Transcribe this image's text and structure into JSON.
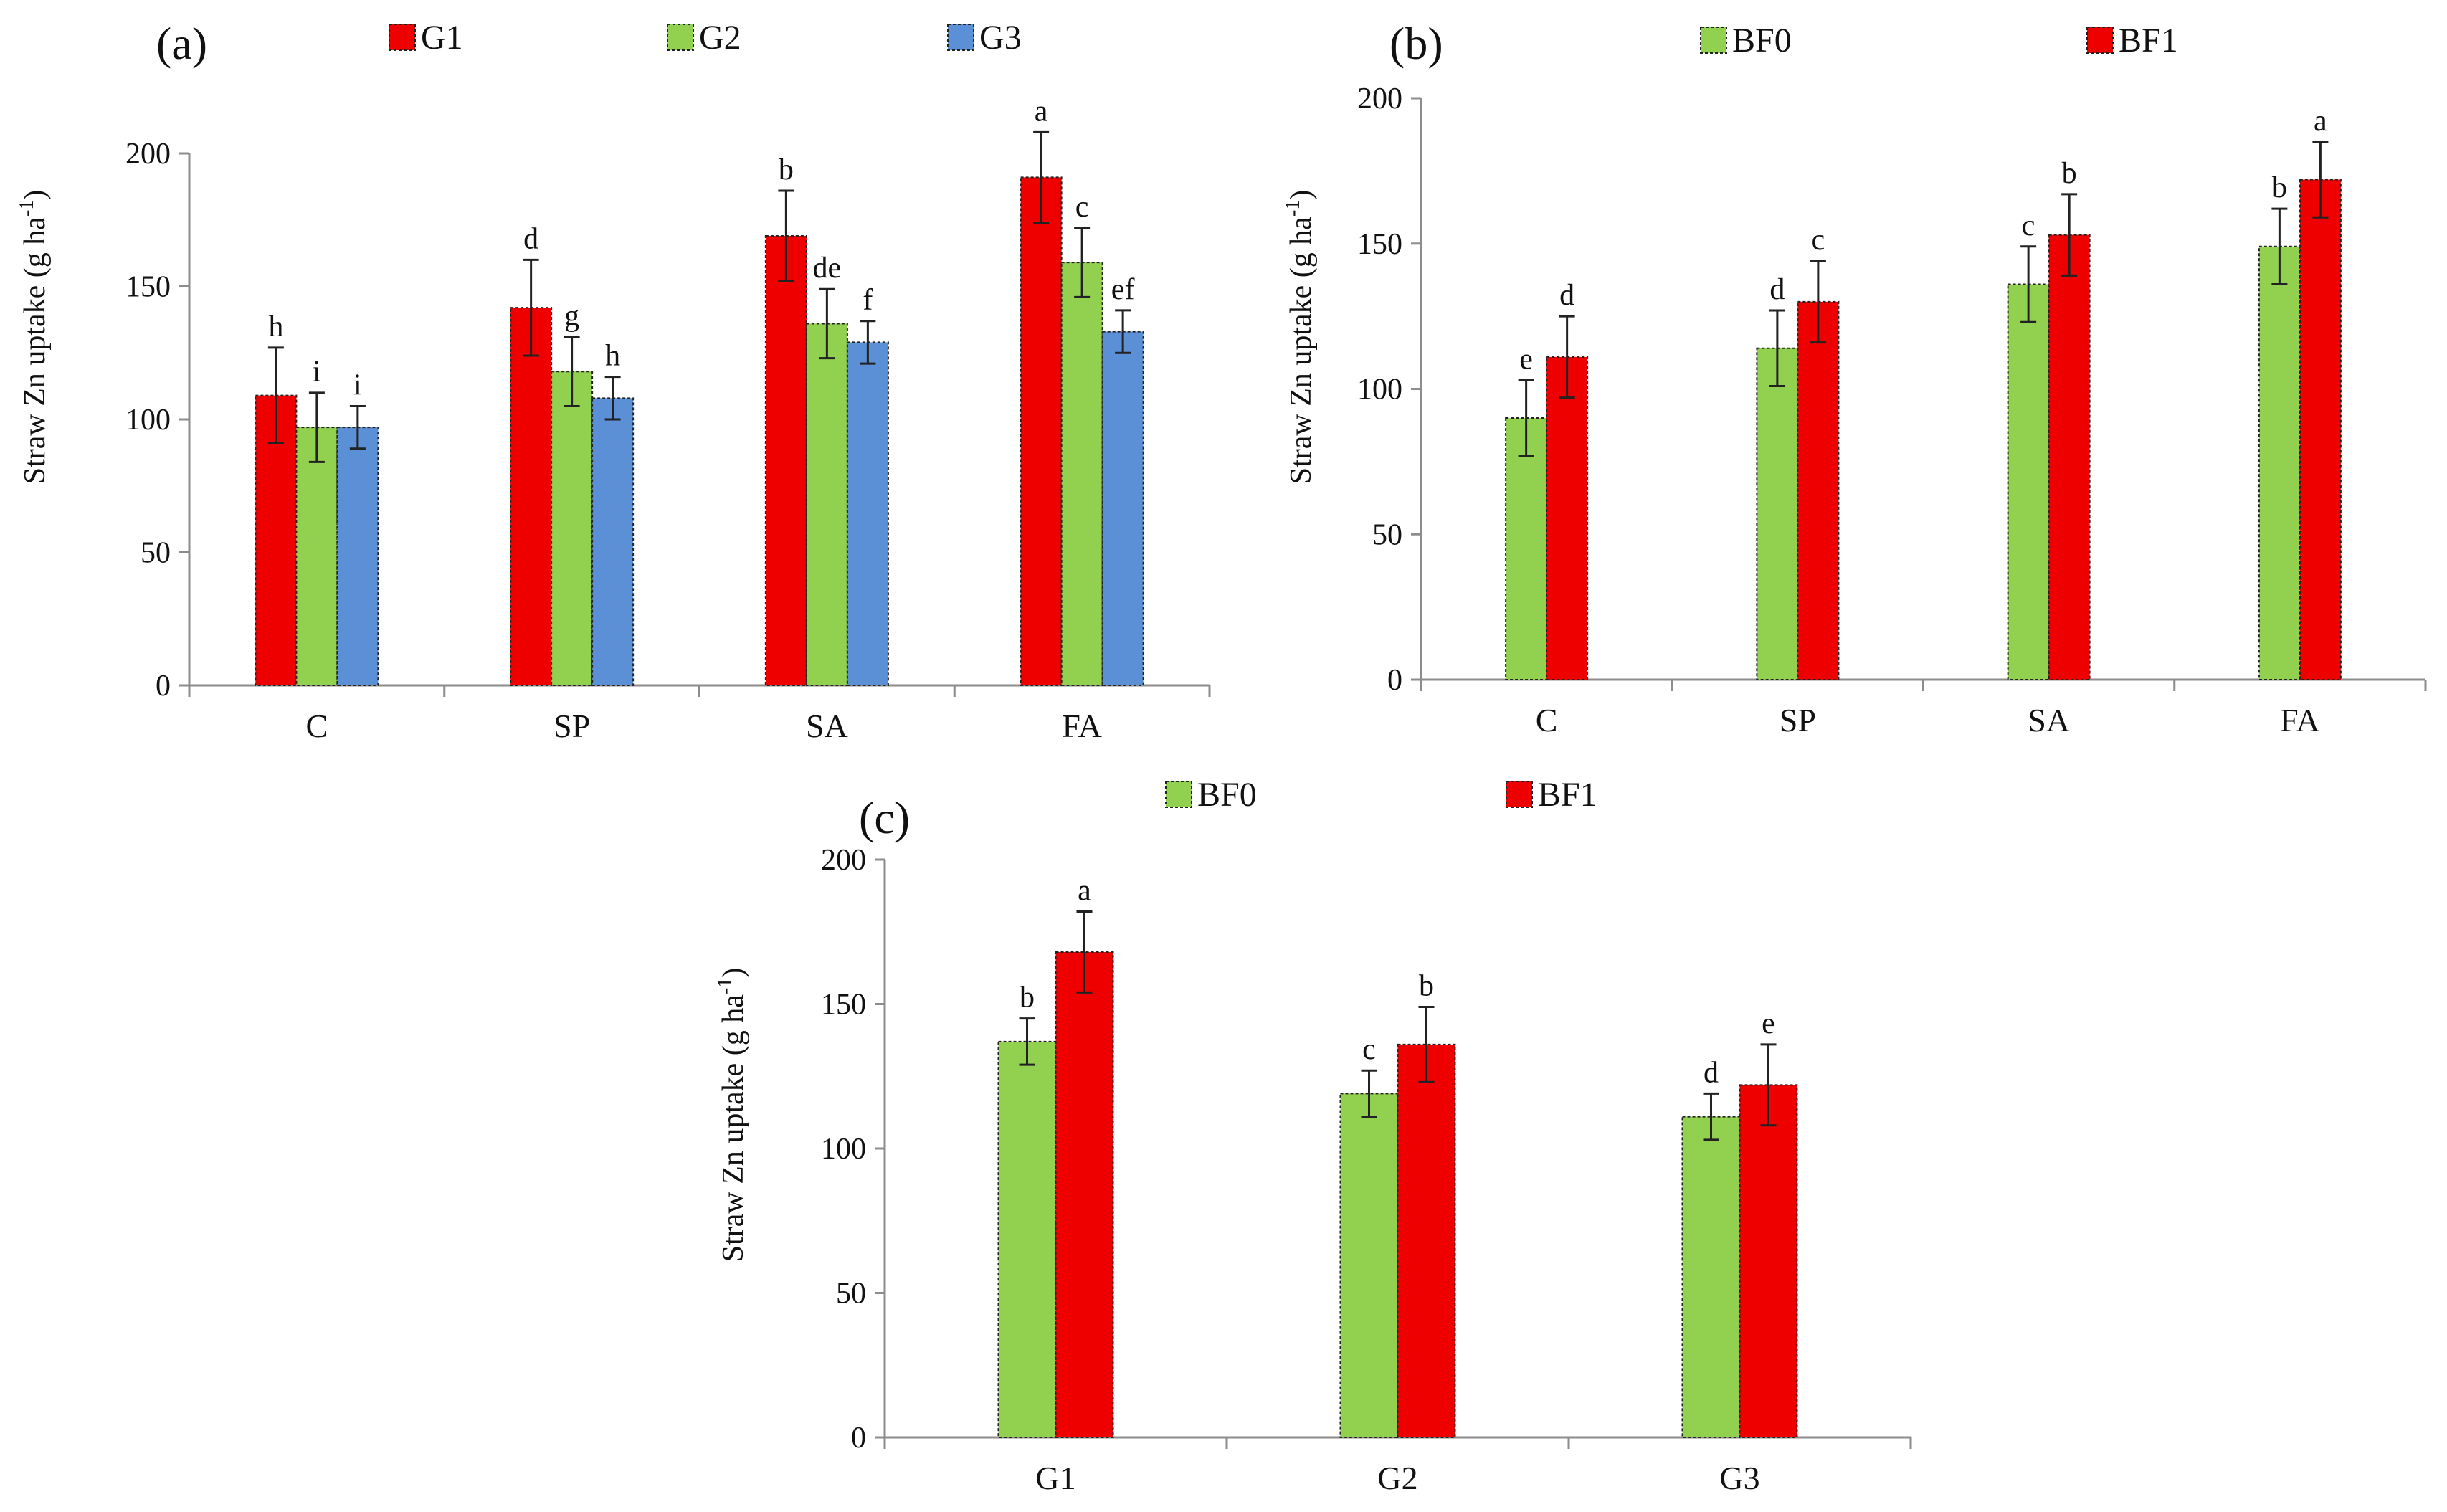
{
  "figure": {
    "colors": {
      "G1": "#ee0000",
      "G2": "#92d050",
      "G3": "#5b8fd6",
      "BF0": "#92d050",
      "BF1": "#ee0000"
    },
    "icons": {
      "legend-swatch": "filled-square"
    }
  },
  "chart_data": [
    {
      "id": "a",
      "panel_label": "(a)",
      "type": "bar",
      "ylabel": "Straw Zn uptake (g ha",
      "ylabel_sup": "-1",
      "ylabel_close": ")",
      "ylim": [
        0,
        200
      ],
      "yticks": [
        0,
        50,
        100,
        150,
        200
      ],
      "categories": [
        "C",
        "SP",
        "SA",
        "FA"
      ],
      "legend": [
        "G1",
        "G2",
        "G3"
      ],
      "series": [
        {
          "name": "G1",
          "color": "#ee0000",
          "values": [
            109,
            142,
            169,
            191
          ],
          "errors": [
            18,
            18,
            17,
            17
          ],
          "letters": [
            "h",
            "d",
            "b",
            "a"
          ]
        },
        {
          "name": "G2",
          "color": "#92d050",
          "values": [
            97,
            118,
            136,
            159
          ],
          "errors": [
            13,
            13,
            13,
            13
          ],
          "letters": [
            "i",
            "g",
            "de",
            "c"
          ]
        },
        {
          "name": "G3",
          "color": "#5b8fd6",
          "values": [
            97,
            108,
            129,
            133
          ],
          "errors": [
            8,
            8,
            8,
            8
          ],
          "letters": [
            "i",
            "h",
            "f",
            "ef"
          ]
        }
      ]
    },
    {
      "id": "b",
      "panel_label": "(b)",
      "type": "bar",
      "ylabel": "Straw Zn uptake (g ha",
      "ylabel_sup": "-1",
      "ylabel_close": ")",
      "ylim": [
        0,
        200
      ],
      "yticks": [
        0,
        50,
        100,
        150,
        200
      ],
      "categories": [
        "C",
        "SP",
        "SA",
        "FA"
      ],
      "legend": [
        "BF0",
        "BF1"
      ],
      "series": [
        {
          "name": "BF0",
          "color": "#92d050",
          "values": [
            90,
            114,
            136,
            149
          ],
          "errors": [
            13,
            13,
            13,
            13
          ],
          "letters": [
            "e",
            "d",
            "c",
            "b"
          ]
        },
        {
          "name": "BF1",
          "color": "#ee0000",
          "values": [
            111,
            130,
            153,
            172
          ],
          "errors": [
            14,
            14,
            14,
            13
          ],
          "letters": [
            "d",
            "c",
            "b",
            "a"
          ]
        }
      ]
    },
    {
      "id": "c",
      "panel_label": "(c)",
      "type": "bar",
      "ylabel": "Straw Zn uptake (g ha",
      "ylabel_sup": "-1",
      "ylabel_close": ")",
      "ylim": [
        0,
        200
      ],
      "yticks": [
        0,
        50,
        100,
        150,
        200
      ],
      "categories": [
        "G1",
        "G2",
        "G3"
      ],
      "legend": [
        "BF0",
        "BF1"
      ],
      "series": [
        {
          "name": "BF0",
          "color": "#92d050",
          "values": [
            137,
            119,
            111
          ],
          "errors": [
            8,
            8,
            8
          ],
          "letters": [
            "b",
            "c",
            "d"
          ]
        },
        {
          "name": "BF1",
          "color": "#ee0000",
          "values": [
            168,
            136,
            122
          ],
          "errors": [
            14,
            13,
            14
          ],
          "letters": [
            "a",
            "b",
            "e"
          ]
        }
      ]
    }
  ]
}
